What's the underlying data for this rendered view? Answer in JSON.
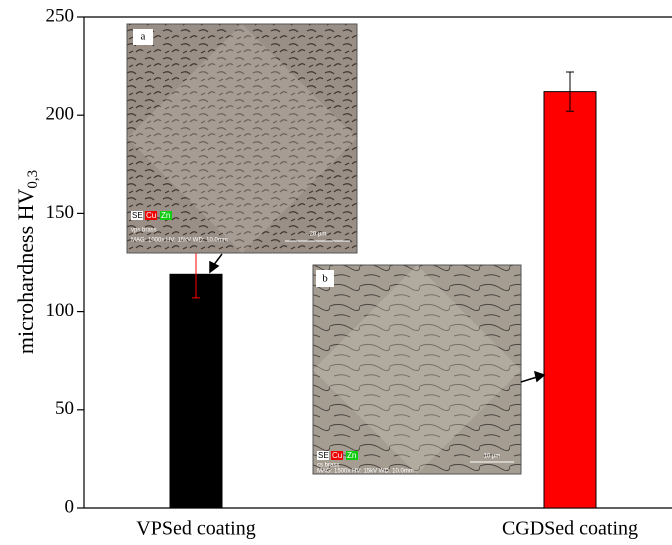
{
  "chart_data": {
    "type": "bar",
    "ylabel": "microhardness HV",
    "ylabel_sub": "0,3",
    "categories": [
      "VPSed coating",
      "CGDSed coating"
    ],
    "values": [
      119,
      212
    ],
    "errors": [
      12,
      10
    ],
    "colors": [
      "#000000",
      "#ff0000"
    ],
    "error_colors": [
      "#ff0000",
      "#000000"
    ],
    "ylim": [
      0,
      250
    ],
    "yticks": [
      0,
      50,
      100,
      150,
      200,
      250
    ],
    "insets": [
      {
        "tag": "a",
        "scale": "20 µm",
        "sample": "vps brass",
        "info": "MAG: 1000x  HV: 15kV  WD: 10.0mm",
        "detectors": [
          "SE",
          "Cu",
          "Zn"
        ]
      },
      {
        "tag": "b",
        "scale": "10 µm",
        "sample": "cs brass",
        "info": "MAG: 1500x  HV: 15kV  WD: 10.0mm",
        "detectors": [
          "SE",
          "Cu",
          "Zn"
        ]
      }
    ]
  }
}
